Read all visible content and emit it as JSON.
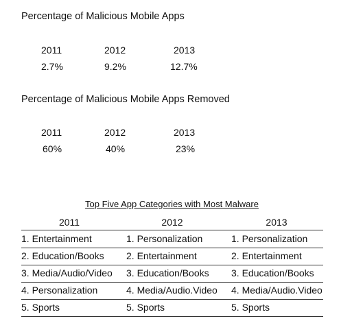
{
  "section1": {
    "title": "Percentage of Malicious Mobile Apps",
    "years": [
      "2011",
      "2012",
      "2013"
    ],
    "values": [
      "2.7%",
      "9.2%",
      "12.7%"
    ]
  },
  "section2": {
    "title": "Percentage of Malicious Mobile Apps Removed",
    "years": [
      "2011",
      "2012",
      "2013"
    ],
    "values": [
      "60%",
      "40%",
      "23%"
    ]
  },
  "top_table": {
    "title": "Top Five App Categories with Most Malware",
    "headers": [
      "2011",
      "2012",
      "2013"
    ],
    "rows": [
      [
        "1. Entertainment",
        "1. Personalization",
        "1. Personalization"
      ],
      [
        "2. Education/Books",
        "2. Entertainment",
        "2. Entertainment"
      ],
      [
        "3. Media/Audio/Video",
        "3. Education/Books",
        "3. Education/Books"
      ],
      [
        "4. Personalization",
        "4. Media/Audio.Video",
        "4. Media/Audio.Video"
      ],
      [
        "5. Sports",
        "5. Sports",
        "5. Sports"
      ]
    ]
  }
}
